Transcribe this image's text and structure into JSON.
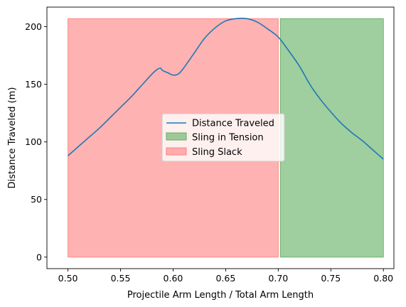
{
  "chart_data": {
    "type": "line",
    "title": "",
    "xlabel": "Projectile Arm Length / Total Arm Length",
    "ylabel": "Distance Traveled (m)",
    "xlim": [
      0.48,
      0.81
    ],
    "ylim": [
      -10,
      217
    ],
    "grid": false,
    "legend_placement": "center",
    "x_ticks": [
      0.5,
      0.55,
      0.6,
      0.65,
      0.7,
      0.75,
      0.8
    ],
    "x_tick_labels": [
      "0.50",
      "0.55",
      "0.60",
      "0.65",
      "0.70",
      "0.75",
      "0.80"
    ],
    "y_ticks": [
      0,
      50,
      100,
      150,
      200
    ],
    "y_tick_labels": [
      "0",
      "50",
      "100",
      "150",
      "200"
    ],
    "series": [
      {
        "name": "Distance Traveled",
        "color": "#1f77b4",
        "x": [
          0.5,
          0.51,
          0.52,
          0.53,
          0.54,
          0.55,
          0.56,
          0.57,
          0.58,
          0.585,
          0.588,
          0.59,
          0.595,
          0.6,
          0.605,
          0.61,
          0.62,
          0.63,
          0.64,
          0.65,
          0.66,
          0.67,
          0.68,
          0.69,
          0.7,
          0.71,
          0.72,
          0.73,
          0.74,
          0.75,
          0.76,
          0.77,
          0.78,
          0.79,
          0.8
        ],
        "y": [
          88,
          96,
          104,
          112,
          121,
          130,
          139,
          149,
          159,
          163,
          164,
          162,
          160,
          158,
          159,
          164,
          177,
          190,
          199,
          205,
          207,
          207,
          204,
          198,
          191,
          179,
          166,
          150,
          137,
          126,
          116,
          108,
          101,
          93,
          85
        ]
      }
    ],
    "regions": [
      {
        "name": "Sling Slack",
        "x_start": 0.5,
        "x_end": 0.7,
        "y_start": 0,
        "y_end": 207,
        "color": "#ff7f7f"
      },
      {
        "name": "Sling in Tension",
        "x_start": 0.702,
        "x_end": 0.8,
        "y_start": 0,
        "y_end": 207,
        "color": "#5fae5f"
      }
    ],
    "legend": [
      "Distance Traveled",
      "Sling in Tension",
      "Sling Slack"
    ]
  }
}
